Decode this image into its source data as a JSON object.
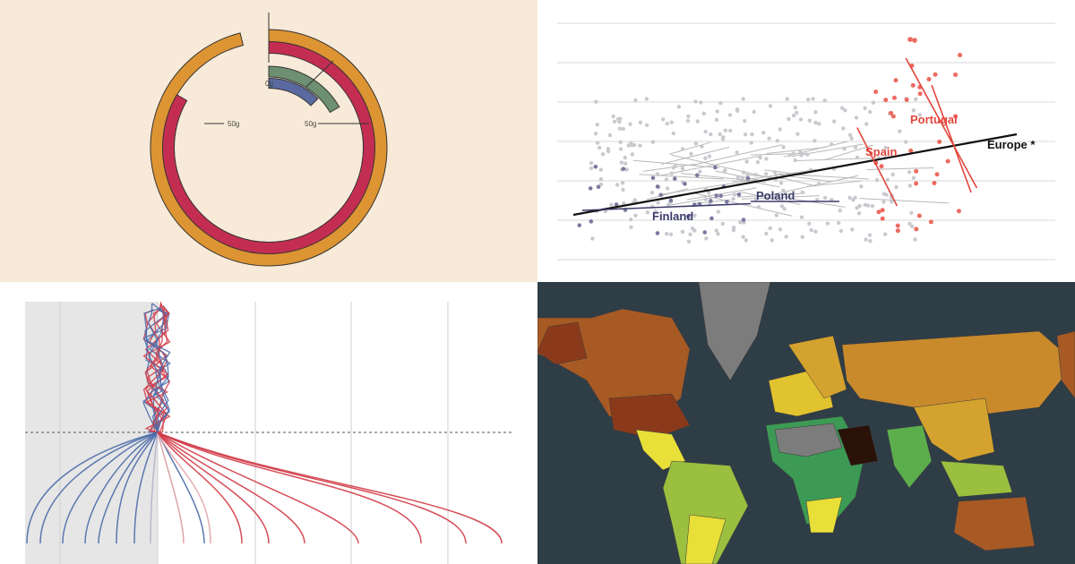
{
  "colors": {
    "radial_bg": "#f8ead8",
    "orange": "#dd9433",
    "crimson": "#c42d52",
    "sage": "#6e8f72",
    "slate_blue": "#5a6aa0",
    "europe_line": "#111111",
    "red_group": "#e2463c",
    "navy_group": "#3b3b6b",
    "grey_points": "#c9c9cf",
    "lines_red": "#d23a46",
    "lines_blue": "#4a6aa8",
    "shade": "#e6e6e6",
    "map_ocean": "#2f3d47",
    "map_nodata": "#7c7c7c"
  },
  "chart_data": [
    {
      "type": "radial-bar",
      "tick_labels": [
        "0g",
        "50g",
        "50g"
      ],
      "series": [
        {
          "color": "orange",
          "sweep_degrees": 346
        },
        {
          "color": "crimson",
          "sweep_degrees": 300
        },
        {
          "color": "sage",
          "sweep_degrees": 60
        },
        {
          "color": "slate_blue",
          "sweep_degrees": 45
        }
      ]
    },
    {
      "type": "scatter",
      "grid": true,
      "labels": [
        {
          "text": "Finland",
          "group": "navy"
        },
        {
          "text": "Poland",
          "group": "navy"
        },
        {
          "text": "Spain",
          "group": "red"
        },
        {
          "text": "Portugal",
          "group": "red"
        },
        {
          "text": "Europe *",
          "group": "black"
        }
      ],
      "trend_lines": [
        {
          "name": "Europe",
          "points": [
            [
              0,
              12
            ],
            [
              100,
              48
            ]
          ]
        },
        {
          "name": "Finland",
          "points": [
            [
              2,
              14
            ],
            [
              40,
              17
            ]
          ]
        },
        {
          "name": "Poland",
          "points": [
            [
              40,
              18
            ],
            [
              60,
              18
            ]
          ]
        },
        {
          "name": "Spain",
          "points": [
            [
              64,
              51
            ],
            [
              73,
              16
            ]
          ]
        },
        {
          "name": "Portugal",
          "points": [
            [
              75,
              82
            ],
            [
              91,
              24
            ]
          ]
        }
      ]
    },
    {
      "type": "line",
      "grid": true,
      "shaded_region": "left",
      "reference_line": "dashed-horizontal",
      "series_groups": [
        "red",
        "blue"
      ]
    },
    {
      "type": "choropleth",
      "projection": "world",
      "legend": "none",
      "palette": [
        "#8a3a1a",
        "#a75a24",
        "#c98a2c",
        "#d4a22e",
        "#e1c32f",
        "#e8df38",
        "#9bbf3f",
        "#5cae4d",
        "#3c9a55",
        "#2a1208"
      ]
    }
  ]
}
